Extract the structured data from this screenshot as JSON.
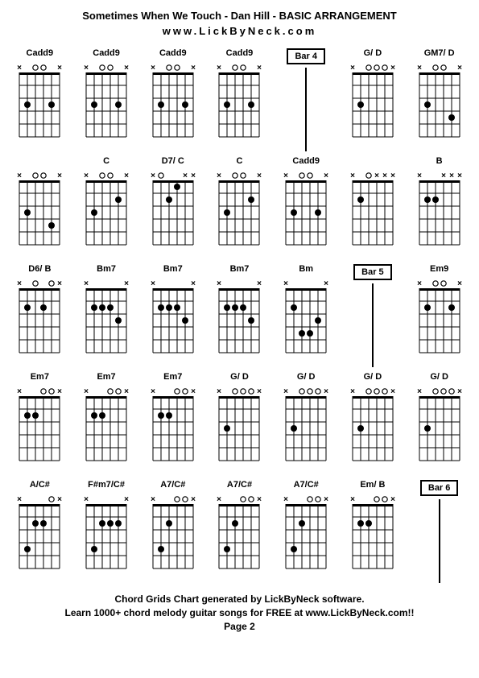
{
  "title": "Sometimes When We Touch - Dan Hill - BASIC ARRANGEMENT",
  "website": "www.LickByNeck.com",
  "footer_line1": "Chord Grids Chart generated by LickByNeck software.",
  "footer_line2": "Learn 1000+ chord melody guitar songs for FREE at www.LickByNeck.com!!",
  "page_label": "Page 2",
  "colors": {
    "bg": "#ffffff",
    "line": "#000000",
    "text": "#000000"
  },
  "diagram": {
    "strings": 6,
    "frets": 5,
    "width": 58,
    "height": 100,
    "top_margin": 14,
    "string_spacing": 10,
    "fret_spacing": 16
  },
  "cells": [
    {
      "type": "chord",
      "name": "Cadd9",
      "mutes": [
        0,
        5
      ],
      "opens": [
        2,
        3
      ],
      "dots": [
        [
          1,
          3
        ],
        [
          4,
          3
        ]
      ]
    },
    {
      "type": "chord",
      "name": "Cadd9",
      "mutes": [
        0,
        5
      ],
      "opens": [
        2,
        3
      ],
      "dots": [
        [
          1,
          3
        ],
        [
          4,
          3
        ]
      ]
    },
    {
      "type": "chord",
      "name": "Cadd9",
      "mutes": [
        0,
        5
      ],
      "opens": [
        2,
        3
      ],
      "dots": [
        [
          1,
          3
        ],
        [
          4,
          3
        ]
      ]
    },
    {
      "type": "chord",
      "name": "Cadd9",
      "mutes": [
        0,
        5
      ],
      "opens": [
        2,
        3
      ],
      "dots": [
        [
          1,
          3
        ],
        [
          4,
          3
        ]
      ]
    },
    {
      "type": "bar",
      "label": "Bar 4"
    },
    {
      "type": "chord",
      "name": "G/ D",
      "mutes": [
        0,
        5
      ],
      "opens": [
        2,
        3,
        4
      ],
      "dots": [
        [
          1,
          3
        ]
      ]
    },
    {
      "type": "chord",
      "name": "GM7/ D",
      "mutes": [
        0,
        5
      ],
      "opens": [
        2,
        3
      ],
      "dots": [
        [
          1,
          3
        ],
        [
          4,
          4
        ]
      ]
    },
    {
      "type": "chord",
      "name": "",
      "mutes": [
        0,
        5
      ],
      "opens": [
        2,
        3
      ],
      "dots": [
        [
          1,
          3
        ],
        [
          4,
          4
        ]
      ]
    },
    {
      "type": "chord",
      "name": "C",
      "mutes": [
        0,
        5
      ],
      "opens": [
        2,
        3
      ],
      "dots": [
        [
          1,
          3
        ],
        [
          4,
          2
        ]
      ]
    },
    {
      "type": "chord",
      "name": "D7/ C",
      "mutes": [
        0,
        4,
        5
      ],
      "opens": [
        1
      ],
      "dots": [
        [
          2,
          2
        ],
        [
          3,
          1
        ]
      ]
    },
    {
      "type": "chord",
      "name": "C",
      "mutes": [
        0,
        5
      ],
      "opens": [
        2,
        3
      ],
      "dots": [
        [
          1,
          3
        ],
        [
          4,
          2
        ]
      ]
    },
    {
      "type": "chord",
      "name": "Cadd9",
      "mutes": [
        0,
        5
      ],
      "opens": [
        2,
        3
      ],
      "dots": [
        [
          1,
          3
        ],
        [
          4,
          3
        ]
      ]
    },
    {
      "type": "chord",
      "name": "",
      "mutes": [
        0,
        3,
        4,
        5
      ],
      "opens": [
        2
      ],
      "dots": [
        [
          1,
          2
        ]
      ]
    },
    {
      "type": "chord",
      "name": "B",
      "mutes": [
        0,
        3,
        4,
        5
      ],
      "opens": [],
      "dots": [
        [
          1,
          2
        ],
        [
          2,
          2
        ]
      ]
    },
    {
      "type": "chord",
      "name": "D6/ B",
      "mutes": [
        0,
        5
      ],
      "opens": [
        2,
        4
      ],
      "dots": [
        [
          1,
          2
        ],
        [
          3,
          2
        ]
      ]
    },
    {
      "type": "chord",
      "name": "Bm7",
      "mutes": [
        0,
        5
      ],
      "opens": [],
      "dots": [
        [
          1,
          2
        ],
        [
          2,
          2
        ],
        [
          3,
          2
        ],
        [
          4,
          3
        ]
      ]
    },
    {
      "type": "chord",
      "name": "Bm7",
      "mutes": [
        0,
        5
      ],
      "opens": [],
      "dots": [
        [
          1,
          2
        ],
        [
          2,
          2
        ],
        [
          3,
          2
        ],
        [
          4,
          3
        ]
      ]
    },
    {
      "type": "chord",
      "name": "Bm7",
      "mutes": [
        0,
        5
      ],
      "opens": [],
      "dots": [
        [
          1,
          2
        ],
        [
          2,
          2
        ],
        [
          3,
          2
        ],
        [
          4,
          3
        ]
      ]
    },
    {
      "type": "chord",
      "name": "Bm",
      "mutes": [
        0,
        5
      ],
      "opens": [],
      "dots": [
        [
          1,
          2
        ],
        [
          2,
          4
        ],
        [
          3,
          4
        ],
        [
          4,
          3
        ]
      ]
    },
    {
      "type": "bar",
      "label": "Bar 5"
    },
    {
      "type": "chord",
      "name": "Em9",
      "mutes": [
        0,
        5
      ],
      "opens": [
        2,
        3
      ],
      "dots": [
        [
          1,
          2
        ],
        [
          4,
          2
        ]
      ]
    },
    {
      "type": "chord",
      "name": "Em7",
      "mutes": [
        0,
        5
      ],
      "opens": [
        3,
        4
      ],
      "dots": [
        [
          1,
          2
        ],
        [
          2,
          2
        ]
      ]
    },
    {
      "type": "chord",
      "name": "Em7",
      "mutes": [
        0,
        5
      ],
      "opens": [
        3,
        4
      ],
      "dots": [
        [
          1,
          2
        ],
        [
          2,
          2
        ]
      ]
    },
    {
      "type": "chord",
      "name": "Em7",
      "mutes": [
        0,
        5
      ],
      "opens": [
        3,
        4
      ],
      "dots": [
        [
          1,
          2
        ],
        [
          2,
          2
        ]
      ]
    },
    {
      "type": "chord",
      "name": "G/ D",
      "mutes": [
        0,
        5
      ],
      "opens": [
        2,
        3,
        4
      ],
      "dots": [
        [
          1,
          3
        ]
      ]
    },
    {
      "type": "chord",
      "name": "G/ D",
      "mutes": [
        0,
        5
      ],
      "opens": [
        2,
        3,
        4
      ],
      "dots": [
        [
          1,
          3
        ]
      ]
    },
    {
      "type": "chord",
      "name": "G/ D",
      "mutes": [
        0,
        5
      ],
      "opens": [
        2,
        3,
        4
      ],
      "dots": [
        [
          1,
          3
        ]
      ]
    },
    {
      "type": "chord",
      "name": "G/ D",
      "mutes": [
        0,
        5
      ],
      "opens": [
        2,
        3,
        4
      ],
      "dots": [
        [
          1,
          3
        ]
      ]
    },
    {
      "type": "chord",
      "name": "A/C#",
      "mutes": [
        0,
        5
      ],
      "opens": [
        4
      ],
      "dots": [
        [
          1,
          4
        ],
        [
          2,
          2
        ],
        [
          3,
          2
        ]
      ]
    },
    {
      "type": "chord",
      "name": "F#m7/C#",
      "mutes": [
        0,
        5
      ],
      "opens": [],
      "dots": [
        [
          1,
          4
        ],
        [
          2,
          2
        ],
        [
          3,
          2
        ],
        [
          4,
          2
        ]
      ]
    },
    {
      "type": "chord",
      "name": "A7/C#",
      "mutes": [
        0,
        5
      ],
      "opens": [
        3,
        4
      ],
      "dots": [
        [
          1,
          4
        ],
        [
          2,
          2
        ]
      ]
    },
    {
      "type": "chord",
      "name": "A7/C#",
      "mutes": [
        0,
        5
      ],
      "opens": [
        3,
        4
      ],
      "dots": [
        [
          1,
          4
        ],
        [
          2,
          2
        ]
      ]
    },
    {
      "type": "chord",
      "name": "A7/C#",
      "mutes": [
        0,
        5
      ],
      "opens": [
        3,
        4
      ],
      "dots": [
        [
          1,
          4
        ],
        [
          2,
          2
        ]
      ]
    },
    {
      "type": "chord",
      "name": "Em/ B",
      "mutes": [
        0,
        5
      ],
      "opens": [
        3,
        4
      ],
      "dots": [
        [
          1,
          2
        ],
        [
          2,
          2
        ]
      ]
    },
    {
      "type": "bar",
      "label": "Bar 6"
    }
  ]
}
